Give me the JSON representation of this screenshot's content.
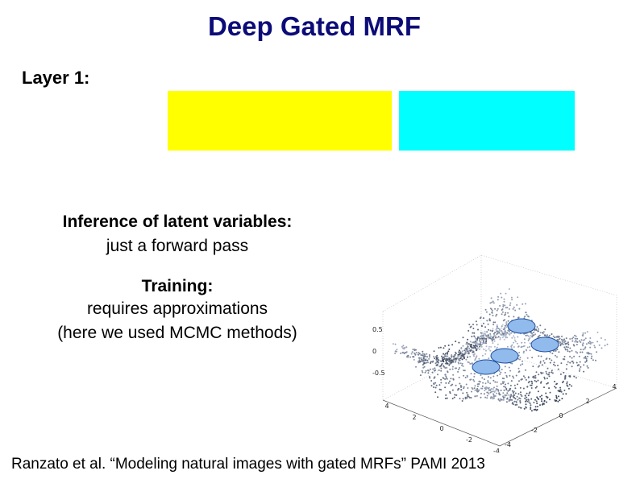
{
  "title": "Deep Gated MRF",
  "layer_label": "Layer 1:",
  "inference": {
    "heading": "Inference of latent variables:",
    "text": "just a forward pass"
  },
  "training": {
    "heading": "Training:",
    "lines": [
      "requires approximations",
      "(here we used MCMC methods)"
    ]
  },
  "plot": {
    "z_ticks": [
      "0.5",
      "0",
      "-0.5"
    ],
    "x_ticks": [
      "4",
      "2",
      "0",
      "-2",
      "-4"
    ],
    "y_ticks": [
      "-4",
      "-2",
      "0",
      "2",
      "4"
    ]
  },
  "citation": "Ranzato et al. “Modeling natural images with gated MRFs” PAMI 2013"
}
